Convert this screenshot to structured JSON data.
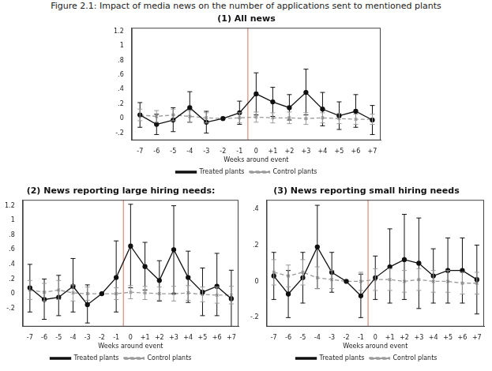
{
  "figure_title": "Figure 2.1: Impact of media news on the number of applications sent to mentioned plants",
  "chart_data": [
    {
      "type": "line",
      "title": "(1) All news",
      "x_label": "Weeks around event",
      "x": [
        -7,
        -6,
        -5,
        -4,
        -3,
        -2,
        -1,
        0,
        1,
        2,
        3,
        4,
        5,
        6,
        7
      ],
      "xlim": [
        -7.5,
        7.5
      ],
      "xticks": [
        -7,
        -6,
        -5,
        -4,
        -3,
        -2,
        -1,
        0,
        {
          "value": 1,
          "label": "+1"
        },
        {
          "value": 2,
          "label": "+2"
        },
        {
          "value": 3,
          "label": "+3"
        },
        {
          "value": 4,
          "label": "+4"
        },
        {
          "value": 5,
          "label": "+5"
        },
        {
          "value": 6,
          "label": "+6"
        },
        {
          "value": 7,
          "label": "+7"
        }
      ],
      "ylim": [
        -0.3,
        1.25
      ],
      "yticks": [
        {
          "value": -0.2,
          "label": "-.2"
        },
        0,
        {
          "value": 0.2,
          "label": ".2"
        },
        {
          "value": 0.4,
          "label": ".4"
        },
        {
          "value": 0.6,
          "label": ".6"
        },
        {
          "value": 0.8,
          "label": ".8"
        },
        1,
        1.2
      ],
      "grid": false,
      "legend": "bottom",
      "event_line": {
        "x": -0.5,
        "color": "#d98c7a"
      },
      "series": [
        {
          "name": "Treated plants",
          "color": "#111111",
          "marker": "circle",
          "line_style": "solid",
          "values": [
            0.05,
            -0.08,
            -0.02,
            0.15,
            -0.05,
            0,
            0.08,
            0.34,
            0.23,
            0.15,
            0.36,
            0.13,
            0.04,
            0.1,
            -0.02
          ],
          "ci_low": [
            -0.12,
            -0.22,
            -0.18,
            -0.05,
            -0.2,
            null,
            -0.08,
            0.05,
            0.03,
            -0.02,
            0.05,
            -0.1,
            -0.15,
            -0.12,
            -0.22
          ],
          "ci_high": [
            0.22,
            0.06,
            0.15,
            0.37,
            0.1,
            null,
            0.24,
            0.63,
            0.43,
            0.33,
            0.68,
            0.36,
            0.23,
            0.33,
            0.18
          ]
        },
        {
          "name": "Control plants",
          "color": "#9a9a9a",
          "marker": "x",
          "line_style": "dashed",
          "values": [
            0.05,
            0.03,
            0.05,
            0.03,
            0.01,
            0,
            0.01,
            0.02,
            0.01,
            0.01,
            0,
            0.01,
            0,
            -0.01,
            -0.01
          ],
          "ci_low": [
            -0.03,
            -0.05,
            -0.03,
            -0.05,
            -0.06,
            null,
            -0.06,
            -0.05,
            -0.06,
            -0.07,
            -0.08,
            -0.06,
            -0.07,
            -0.08,
            -0.08
          ],
          "ci_high": [
            0.13,
            0.11,
            0.13,
            0.11,
            0.08,
            null,
            0.08,
            0.09,
            0.08,
            0.09,
            0.08,
            0.08,
            0.07,
            0.06,
            0.06
          ]
        }
      ]
    },
    {
      "type": "line",
      "title": "(2) News reporting large hiring needs:",
      "x_label": "Weeks around event",
      "x": [
        -7,
        -6,
        -5,
        -4,
        -3,
        -2,
        -1,
        0,
        1,
        2,
        3,
        4,
        5,
        6,
        7
      ],
      "xlim": [
        -7.5,
        7.5
      ],
      "xticks": [
        -7,
        -6,
        -5,
        -4,
        -3,
        -2,
        -1,
        0,
        {
          "value": 1,
          "label": "+1"
        },
        {
          "value": 2,
          "label": "+2"
        },
        {
          "value": 3,
          "label": "+3"
        },
        {
          "value": 4,
          "label": "+4"
        },
        {
          "value": 5,
          "label": "+5"
        },
        {
          "value": 6,
          "label": "+6"
        },
        {
          "value": 7,
          "label": "+7"
        }
      ],
      "ylim": [
        -0.45,
        1.28
      ],
      "yticks": [
        {
          "value": -0.2,
          "label": "-.2"
        },
        0,
        {
          "value": 0.2,
          "label": ".2"
        },
        {
          "value": 0.4,
          "label": ".4"
        },
        {
          "value": 0.6,
          "label": ".6"
        },
        {
          "value": 0.8,
          "label": ".8"
        },
        1,
        1.2
      ],
      "grid": false,
      "legend": "bottom",
      "event_line": {
        "x": -0.5,
        "color": "#d98c7a"
      },
      "series": [
        {
          "name": "Treated plants",
          "color": "#111111",
          "marker": "circle",
          "line_style": "solid",
          "values": [
            0.08,
            -0.08,
            -0.05,
            0.1,
            -0.15,
            0,
            0.22,
            0.65,
            0.37,
            0.18,
            0.6,
            0.22,
            0.02,
            0.1,
            -0.07
          ],
          "ci_low": [
            -0.25,
            -0.35,
            -0.3,
            -0.25,
            -0.4,
            null,
            -0.25,
            0.08,
            0.05,
            -0.1,
            0,
            -0.12,
            -0.3,
            -0.3,
            -0.45
          ],
          "ci_high": [
            0.4,
            0.2,
            0.25,
            0.48,
            0.12,
            null,
            0.72,
            1.22,
            0.7,
            0.45,
            1.2,
            0.58,
            0.35,
            0.55,
            0.32
          ]
        },
        {
          "name": "Control plants",
          "color": "#9a9a9a",
          "marker": "x",
          "line_style": "dashed",
          "values": [
            0.05,
            0.02,
            0.05,
            0.01,
            0,
            0,
            0,
            0.02,
            0.01,
            0,
            0,
            0.01,
            -0.01,
            -0.02,
            -0.02
          ],
          "ci_low": [
            -0.08,
            -0.1,
            -0.08,
            -0.1,
            -0.09,
            null,
            -0.08,
            -0.07,
            -0.08,
            -0.09,
            -0.1,
            -0.09,
            -0.11,
            -0.13,
            -0.14
          ],
          "ci_high": [
            0.18,
            0.14,
            0.18,
            0.12,
            0.09,
            null,
            0.08,
            0.11,
            0.1,
            0.09,
            0.1,
            0.11,
            0.09,
            0.09,
            0.1
          ]
        }
      ]
    },
    {
      "type": "line",
      "title": "(3) News reporting small hiring needs",
      "x_label": "Weeks around event",
      "x": [
        -7,
        -6,
        -5,
        -4,
        -3,
        -2,
        -1,
        0,
        1,
        2,
        3,
        4,
        5,
        6,
        7
      ],
      "xlim": [
        -7.5,
        7.5
      ],
      "xticks": [
        -7,
        -6,
        -5,
        -4,
        -3,
        -2,
        -1,
        0,
        {
          "value": 1,
          "label": "+1"
        },
        {
          "value": 2,
          "label": "+2"
        },
        {
          "value": 3,
          "label": "+3"
        },
        {
          "value": 4,
          "label": "+4"
        },
        {
          "value": 5,
          "label": "+5"
        },
        {
          "value": 6,
          "label": "+6"
        },
        {
          "value": 7,
          "label": "+7"
        }
      ],
      "ylim": [
        -0.25,
        0.45
      ],
      "yticks": [
        {
          "value": -0.2,
          "label": "-.2"
        },
        0,
        {
          "value": 0.2,
          "label": ".2"
        },
        {
          "value": 0.4,
          "label": ".4"
        }
      ],
      "grid": false,
      "legend": "bottom",
      "event_line": {
        "x": -0.5,
        "color": "#d98c7a"
      },
      "series": [
        {
          "name": "Treated plants",
          "color": "#111111",
          "marker": "circle",
          "line_style": "solid",
          "values": [
            0.03,
            -0.07,
            0.02,
            0.19,
            0.05,
            0,
            -0.08,
            0.02,
            0.08,
            0.12,
            0.1,
            0.03,
            0.06,
            0.06,
            0.01
          ],
          "ci_low": [
            -0.1,
            -0.2,
            -0.12,
            -0.04,
            -0.06,
            null,
            -0.2,
            -0.1,
            -0.12,
            -0.1,
            -0.15,
            -0.12,
            -0.12,
            -0.12,
            -0.18
          ],
          "ci_high": [
            0.16,
            0.06,
            0.16,
            0.42,
            0.16,
            null,
            0.04,
            0.14,
            0.29,
            0.37,
            0.35,
            0.18,
            0.24,
            0.24,
            0.2
          ]
        },
        {
          "name": "Control plants",
          "color": "#9a9a9a",
          "marker": "x",
          "line_style": "dashed",
          "values": [
            0.05,
            0.03,
            0.05,
            0.02,
            0.01,
            0,
            0,
            0.01,
            0.01,
            0,
            0.01,
            0,
            0,
            -0.01,
            -0.01
          ],
          "ci_low": [
            -0.02,
            -0.03,
            -0.02,
            -0.04,
            -0.04,
            null,
            -0.05,
            -0.05,
            -0.05,
            -0.06,
            -0.05,
            -0.06,
            -0.06,
            -0.07,
            -0.07
          ],
          "ci_high": [
            0.12,
            0.09,
            0.12,
            0.08,
            0.06,
            null,
            0.05,
            0.07,
            0.07,
            0.06,
            0.07,
            0.06,
            0.06,
            0.05,
            0.05
          ]
        }
      ]
    }
  ]
}
